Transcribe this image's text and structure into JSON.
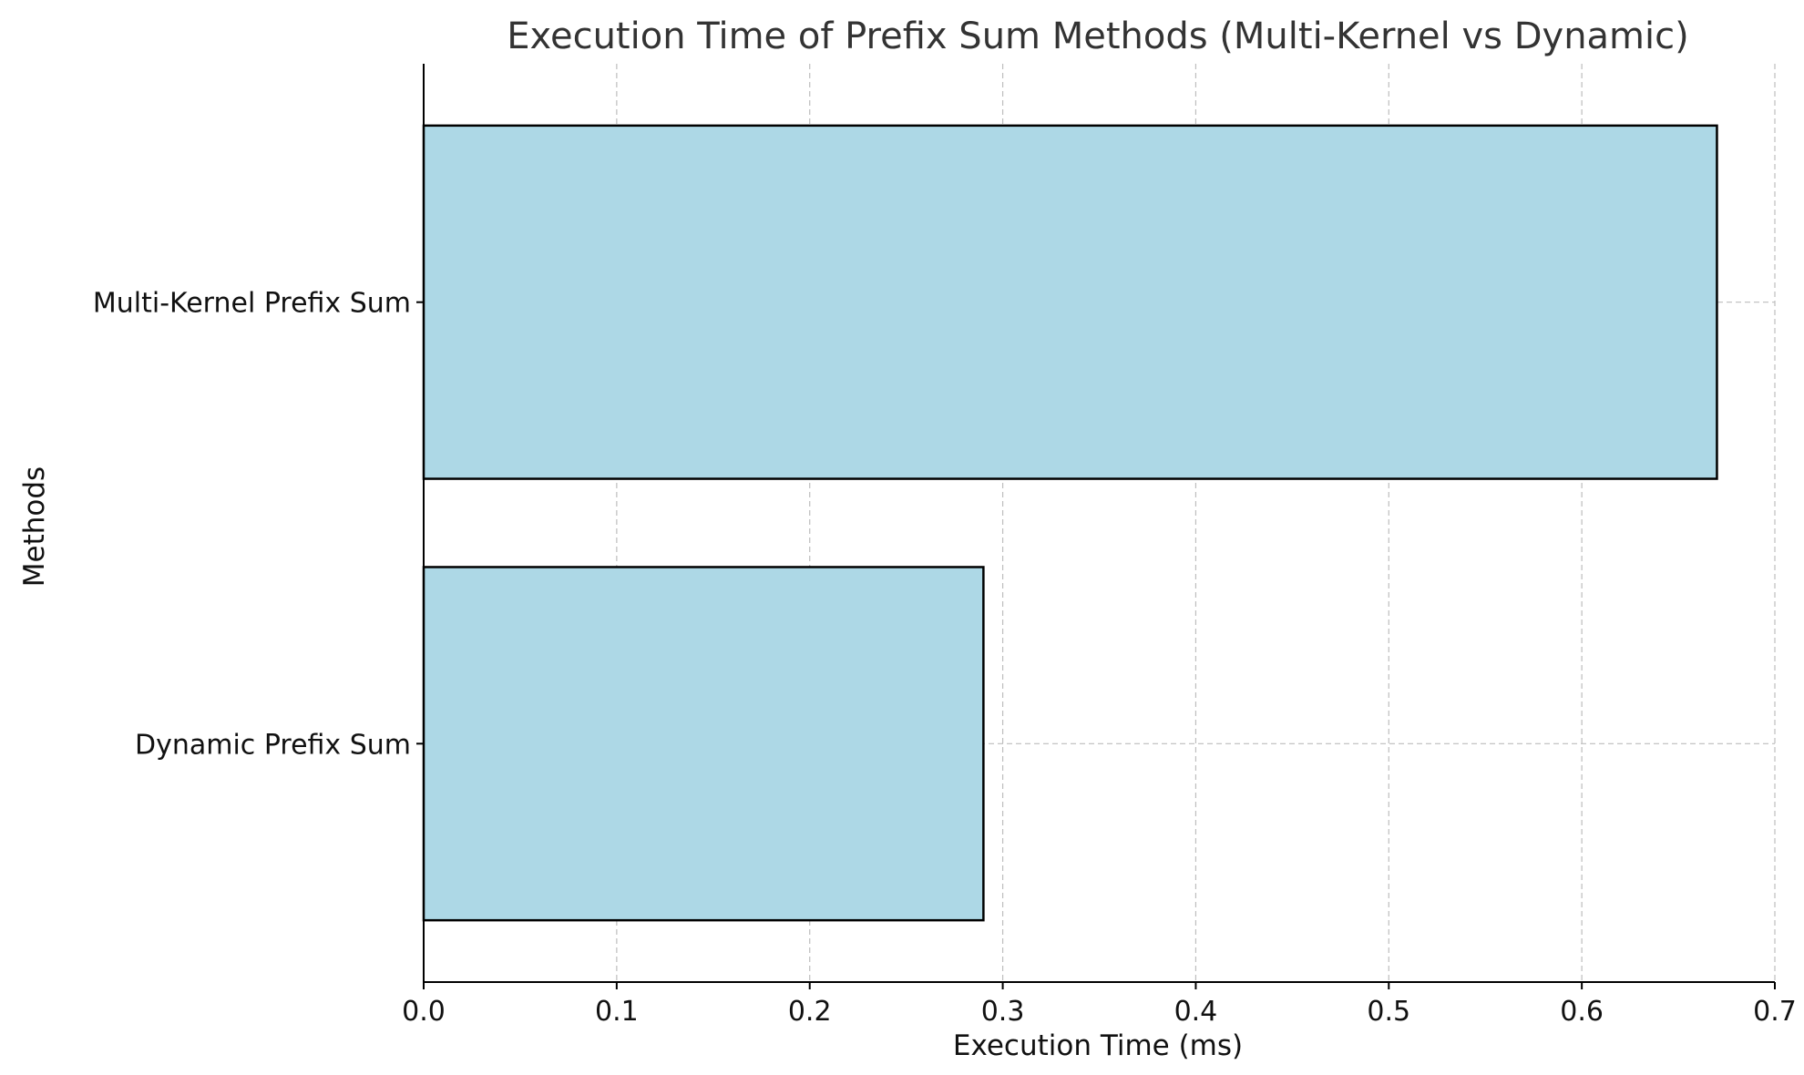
{
  "chart_data": {
    "type": "bar",
    "orientation": "horizontal",
    "title": "Execution Time of Prefix Sum Methods (Multi-Kernel vs Dynamic)",
    "xlabel": "Execution Time (ms)",
    "ylabel": "Methods",
    "categories": [
      "Multi-Kernel Prefix Sum",
      "Dynamic Prefix Sum"
    ],
    "values": [
      0.67,
      0.29
    ],
    "xlim": [
      0,
      0.7
    ],
    "xticks": [
      "0.0",
      "0.1",
      "0.2",
      "0.3",
      "0.4",
      "0.5",
      "0.6",
      "0.7"
    ],
    "grid": true,
    "bar_color": "#add8e6",
    "bar_edge_color": "#000000"
  }
}
